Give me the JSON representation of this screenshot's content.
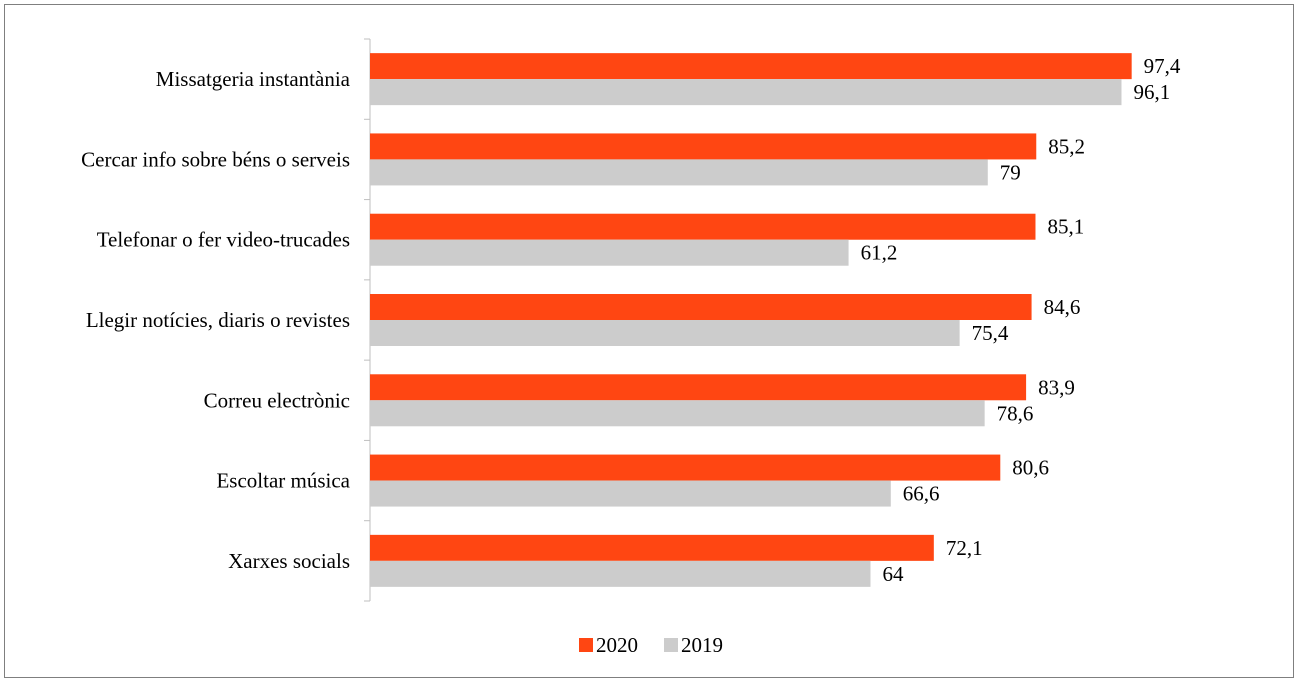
{
  "chart_data": {
    "type": "bar",
    "orientation": "horizontal",
    "categories": [
      "Missatgeria instantània",
      "Cercar info sobre béns o serveis",
      "Telefonar o fer video-trucades",
      "Llegir notícies, diaris o revistes",
      "Correu electrònic",
      "Escoltar música",
      "Xarxes socials"
    ],
    "series": [
      {
        "name": "2020",
        "color": "#ff4612",
        "values": [
          97.4,
          85.2,
          85.1,
          84.6,
          83.9,
          80.6,
          72.1
        ],
        "labels": [
          "97,4",
          "85,2",
          "85,1",
          "84,6",
          "83,9",
          "80,6",
          "72,1"
        ]
      },
      {
        "name": "2019",
        "color": "#cccccc",
        "values": [
          96.1,
          79,
          61.2,
          75.4,
          78.6,
          66.6,
          64
        ],
        "labels": [
          "96,1",
          "79",
          "61,2",
          "75,4",
          "78,6",
          "66,6",
          "64"
        ]
      }
    ],
    "xlim": [
      0,
      100
    ],
    "grid": false,
    "legend_position": "bottom"
  }
}
